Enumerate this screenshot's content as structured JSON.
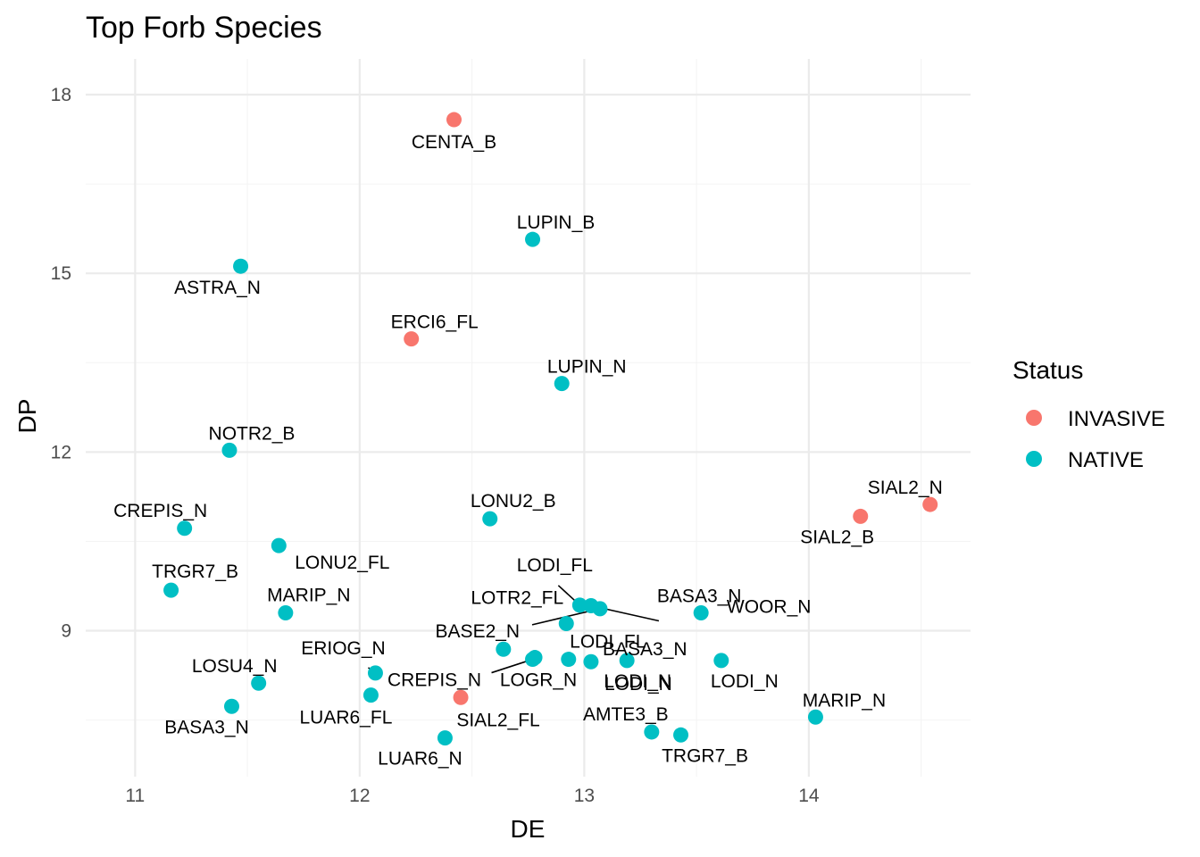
{
  "chart_data": {
    "type": "scatter",
    "title": "Top Forb Species",
    "xlabel": "DE",
    "ylabel": "DP",
    "xlim": [
      10.78,
      14.72
    ],
    "ylim": [
      6.55,
      18.6
    ],
    "xticks": [
      11,
      12,
      13,
      14
    ],
    "yticks": [
      9,
      12,
      15,
      18
    ],
    "grid": true,
    "legend": {
      "title": "Status",
      "position": "right",
      "entries": [
        {
          "name": "INVASIVE",
          "color": "#F8766D"
        },
        {
          "name": "NATIVE",
          "color": "#00BFC4"
        }
      ]
    },
    "series": [
      {
        "name": "INVASIVE",
        "color": "#F8766D",
        "points": [
          {
            "label": "CENTA_B",
            "x": 12.42,
            "y": 17.58
          },
          {
            "label": "ERCI6_FL",
            "x": 12.23,
            "y": 13.9
          },
          {
            "label": "SIAL2_N",
            "x": 14.54,
            "y": 11.12
          },
          {
            "label": "SIAL2_B",
            "x": 14.23,
            "y": 10.92
          },
          {
            "label": "SIAL2_FL",
            "x": 12.45,
            "y": 7.88
          }
        ]
      },
      {
        "name": "NATIVE",
        "color": "#00BFC4",
        "points": [
          {
            "label": "LUPIN_B",
            "x": 12.77,
            "y": 15.57
          },
          {
            "label": "ASTRA_N",
            "x": 11.47,
            "y": 15.12
          },
          {
            "label": "LUPIN_N",
            "x": 12.9,
            "y": 13.15
          },
          {
            "label": "NOTR2_B",
            "x": 11.42,
            "y": 12.03
          },
          {
            "label": "LONU2_B",
            "x": 12.58,
            "y": 10.88
          },
          {
            "label": "CREPIS_N",
            "x": 11.22,
            "y": 10.72
          },
          {
            "label": "LONU2_FL",
            "x": 11.64,
            "y": 10.43
          },
          {
            "label": "TRGR7_B",
            "x": 11.16,
            "y": 9.68
          },
          {
            "label": "MARIP_N",
            "x": 11.67,
            "y": 9.3
          },
          {
            "label": "LODI_FL",
            "x": 12.98,
            "y": 9.43
          },
          {
            "label": "BASA3_N",
            "x": 13.03,
            "y": 9.42
          },
          {
            "label": "BASA3_N",
            "x": 13.07,
            "y": 9.37
          },
          {
            "label": "LOTR2_FL",
            "x": 12.92,
            "y": 9.12
          },
          {
            "label": "WOOR_N",
            "x": 13.52,
            "y": 9.3
          },
          {
            "label": "BASE2_N",
            "x": 12.64,
            "y": 8.69
          },
          {
            "label": "LOGR_N",
            "x": 12.78,
            "y": 8.55
          },
          {
            "label": "LODI_FL",
            "x": 12.93,
            "y": 8.52
          },
          {
            "label": "LODI_N",
            "x": 13.03,
            "y": 8.48
          },
          {
            "label": "LODI_N",
            "x": 13.19,
            "y": 8.5
          },
          {
            "label": "LODI_N",
            "x": 13.61,
            "y": 8.5
          },
          {
            "label": "ERIOG_N",
            "x": 12.07,
            "y": 8.29
          },
          {
            "label": "CREPIS_N",
            "x": 12.77,
            "y": 8.52
          },
          {
            "label": "LOSU4_N",
            "x": 11.55,
            "y": 8.12
          },
          {
            "label": "LUAR6_FL",
            "x": 12.05,
            "y": 7.92
          },
          {
            "label": "BASA3_N",
            "x": 11.43,
            "y": 7.73
          },
          {
            "label": "MARIP_N",
            "x": 14.03,
            "y": 7.55
          },
          {
            "label": "AMTE3_B",
            "x": 13.3,
            "y": 7.3
          },
          {
            "label": "TRGR7_B",
            "x": 13.43,
            "y": 7.25
          },
          {
            "label": "LUAR6_N",
            "x": 12.38,
            "y": 7.2
          }
        ]
      }
    ]
  }
}
